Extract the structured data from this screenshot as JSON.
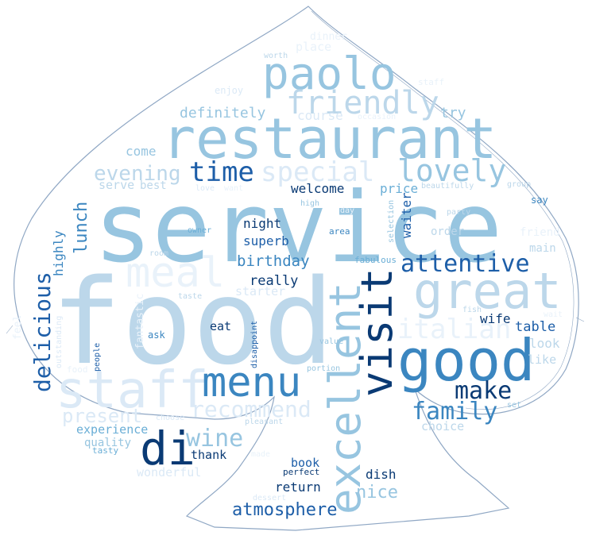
{
  "colors": {
    "c1": "#0a3a74",
    "c2": "#1d5ea8",
    "c3": "#3b86c0",
    "c4": "#6aaed6",
    "c5": "#97c5e0",
    "c6": "#bcd7ea",
    "c7": "#dbe9f6",
    "c8": "#e9f2fa",
    "outline": "#8fa7c4"
  },
  "words": {
    "service": "service",
    "food": "food",
    "restaurant": "restaurant",
    "paolo": "paolo",
    "friendly": "friendly",
    "great": "great",
    "good": "good",
    "excellent": "excellent",
    "visit": "visit",
    "staff": "staff",
    "menu": "menu",
    "meal": "meal",
    "di": "di",
    "lovely": "lovely",
    "special": "special",
    "time": "time",
    "evening": "evening",
    "attentive": "attentive",
    "italian": "italian",
    "delicious": "delicious",
    "make": "make",
    "family": "family",
    "recommend": "recommend",
    "wine": "wine",
    "present": "present",
    "lunch": "lunch",
    "birthday": "birthday",
    "atmosphere": "atmosphere",
    "nice": "nice",
    "definitely": "definitely",
    "course": "course",
    "try": "try",
    "come": "come",
    "welcome": "welcome",
    "price": "price",
    "serve": "serve",
    "best": "best",
    "night": "night",
    "superb": "superb",
    "really": "really",
    "starter": "starter",
    "highly": "highly",
    "waiter": "waiter",
    "order": "order",
    "main": "main",
    "table": "table",
    "wife": "wife",
    "look": "look",
    "like": "like",
    "eat": "eat",
    "thank": "thank",
    "experience": "experience",
    "quality": "quality",
    "tasty": "tasty",
    "choice": "choice",
    "book": "book",
    "perfect": "perfect",
    "return": "return",
    "dish": "dish",
    "wonderful": "wonderful",
    "dinner": "dinner",
    "place": "place",
    "worth": "worth",
    "enjoy": "enjoy",
    "occasion": "occasion",
    "love": "love",
    "beautifully": "beautifully",
    "group": "group",
    "say": "say",
    "high": "high",
    "area": "area",
    "owner": "owner",
    "party": "party",
    "selection": "selection",
    "room": "room",
    "fabulous": "fabulous",
    "taste": "taste",
    "fish": "fish",
    "ask": "ask",
    "people": "people",
    "outstanding": "outstanding",
    "disappoint": "disappoint",
    "value": "value",
    "portion": "portion",
    "set": "set",
    "choose": "choose",
    "pleasant": "pleasant",
    "dessert": "dessert",
    "fantastic": "fantastic",
    "day": "day",
    "feel": "feel",
    "want": "want",
    "wait": "wait",
    "made": "made",
    "staff_small": "staff",
    "food_small": "food",
    "friend": "friend"
  }
}
